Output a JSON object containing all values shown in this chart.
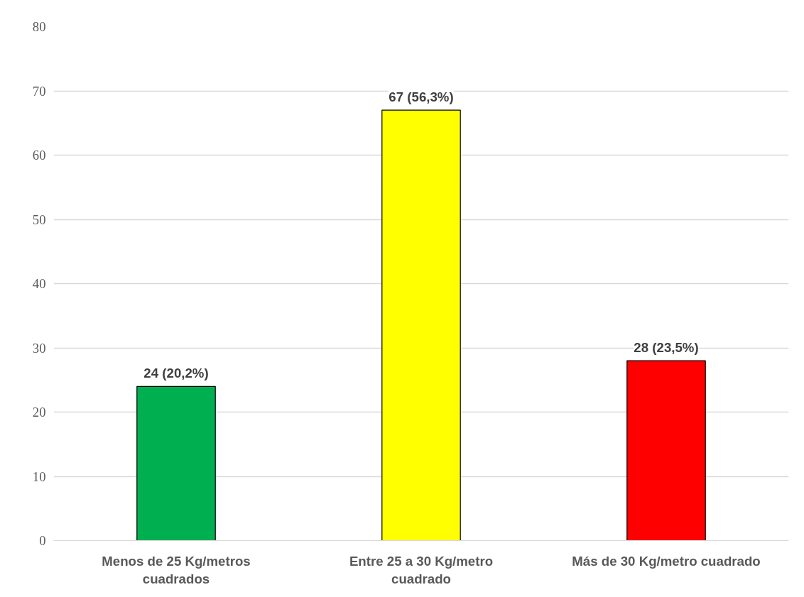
{
  "chart_data": {
    "type": "bar",
    "categories": [
      "Menos de 25 Kg/metros cuadrados",
      "Entre 25 a 30 Kg/metro cuadrado",
      "Más de 30 Kg/metro cuadrado"
    ],
    "values": [
      24,
      67,
      28
    ],
    "colors": [
      "#00b050",
      "#ffff00",
      "#ff0000"
    ],
    "value_labels": [
      "24 (20,2%)",
      "67 (56,3%)",
      "28 (23,5%)"
    ],
    "ylim": [
      0,
      80
    ],
    "yticks": [
      0,
      10,
      20,
      30,
      40,
      50,
      60,
      70,
      80
    ],
    "grid": "y"
  }
}
